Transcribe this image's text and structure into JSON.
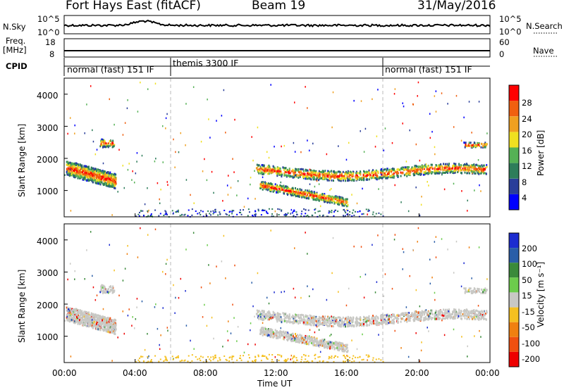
{
  "header": {
    "station": "Fort Hays East (fitACF)",
    "beam": "Beam 19",
    "date": "31/May/2016"
  },
  "top_panels": {
    "nsky_label": "N.Sky",
    "nsky_ticks": [
      "10^5",
      "10^0"
    ],
    "nsearch_label": "N.Search",
    "nsearch_ticks": [
      "10^5",
      "10^0"
    ],
    "freq_label": "Freq.",
    "freq_unit": "[MHz]",
    "freq_ticks": [
      "18",
      "8"
    ],
    "nave_label": "Nave",
    "nave_ticks": [
      "60",
      "0"
    ],
    "cpid_label": "CPID",
    "cpid_segments": [
      {
        "label": "normal (fast) 151 IF",
        "start_h": 0,
        "end_h": 6
      },
      {
        "label": "themis 3300 IF",
        "start_h": 6,
        "end_h": 18
      },
      {
        "label": "normal (fast) 151 IF",
        "start_h": 18,
        "end_h": 24
      }
    ]
  },
  "power_colorbar": {
    "label": "Power [dB]",
    "ticks": [
      "28",
      "24",
      "20",
      "16",
      "12",
      "8",
      "4"
    ],
    "colors": [
      "#0000ff",
      "#2a3e9a",
      "#2e7d5a",
      "#55b155",
      "#f0e020",
      "#f0a020",
      "#f06010",
      "#ff0000"
    ]
  },
  "velocity_colorbar": {
    "label": "Velocity [m s⁻¹]",
    "ticks": [
      "200",
      "100",
      "50",
      "15",
      "-15",
      "-50",
      "-100",
      "-200"
    ],
    "colors": [
      "#1c2cd0",
      "#2a5ea8",
      "#3a8a3a",
      "#6ccc4c",
      "#c8c8c4",
      "#f5c020",
      "#f08010",
      "#f05010",
      "#ee0000"
    ]
  },
  "chart_data": {
    "type": "heatmap",
    "xlabel": "Time UT",
    "ylabel": "Slant Range [km]",
    "x_ticks": [
      "00:00",
      "04:00",
      "08:00",
      "12:00",
      "16:00",
      "20:00",
      "00:00"
    ],
    "y_ticks": [
      "1000",
      "2000",
      "3000",
      "4000"
    ],
    "xlim_hours": [
      0,
      24
    ],
    "ylim_km": [
      180,
      4500
    ],
    "scatter_bands": [
      {
        "t": [
          0.1,
          2.9
        ],
        "r": [
          1300,
          1900
        ]
      },
      {
        "t": [
          10.8,
          23.8
        ],
        "r": [
          1300,
          1750
        ]
      },
      {
        "t": [
          11.0,
          16.0
        ],
        "r": [
          600,
          1100
        ]
      },
      {
        "t": [
          2.0,
          2.8
        ],
        "r": [
          2200,
          2800
        ]
      }
    ]
  }
}
